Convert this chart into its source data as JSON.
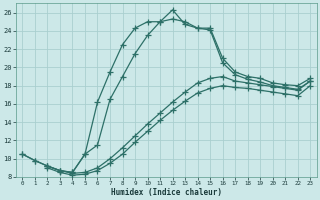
{
  "xlabel": "Humidex (Indice chaleur)",
  "bg_color": "#cce8e8",
  "grid_color": "#aacfcf",
  "line_color": "#2d7068",
  "xlim": [
    -0.5,
    23.5
  ],
  "ylim": [
    8,
    27
  ],
  "xticks": [
    0,
    1,
    2,
    3,
    4,
    5,
    6,
    7,
    8,
    9,
    10,
    11,
    12,
    13,
    14,
    15,
    16,
    17,
    18,
    19,
    20,
    21,
    22,
    23
  ],
  "yticks": [
    8,
    10,
    12,
    14,
    16,
    18,
    20,
    22,
    24,
    26
  ],
  "line1_x": [
    0,
    1,
    2,
    3,
    4,
    5,
    6,
    7,
    8,
    9,
    10,
    11,
    12,
    13,
    14,
    15,
    16,
    17,
    18,
    19,
    20,
    21,
    22,
    23
  ],
  "line1_y": [
    10.5,
    9.8,
    9.2,
    8.7,
    8.5,
    10.5,
    16.2,
    19.5,
    22.5,
    24.3,
    25.0,
    25.0,
    26.3,
    24.7,
    24.3,
    24.3,
    21.0,
    19.5,
    19.0,
    18.8,
    18.3,
    18.1,
    18.0,
    18.8
  ],
  "line2_x": [
    0,
    1,
    2,
    3,
    4,
    5,
    6,
    7,
    8,
    9,
    10,
    11,
    12,
    13,
    14,
    15,
    16,
    17,
    18,
    19,
    20,
    21,
    22,
    23
  ],
  "line2_y": [
    10.5,
    9.8,
    9.2,
    8.7,
    8.5,
    10.5,
    11.5,
    16.5,
    19.0,
    21.5,
    23.5,
    25.0,
    25.3,
    25.0,
    24.3,
    24.1,
    20.5,
    19.2,
    18.7,
    18.4,
    18.0,
    17.8,
    17.6,
    18.5
  ],
  "line3_x": [
    2,
    3,
    4,
    5,
    6,
    7,
    8,
    9,
    10,
    11,
    12,
    13,
    14,
    15,
    16,
    17,
    18,
    19,
    20,
    21,
    22,
    23
  ],
  "line3_y": [
    9.2,
    8.7,
    8.4,
    8.5,
    9.0,
    10.0,
    11.2,
    12.5,
    13.8,
    15.0,
    16.2,
    17.3,
    18.3,
    18.8,
    19.0,
    18.5,
    18.3,
    18.1,
    17.9,
    17.7,
    17.5,
    18.5
  ],
  "line4_x": [
    2,
    3,
    4,
    5,
    6,
    7,
    8,
    9,
    10,
    11,
    12,
    13,
    14,
    15,
    16,
    17,
    18,
    19,
    20,
    21,
    22,
    23
  ],
  "line4_y": [
    9.0,
    8.5,
    8.2,
    8.3,
    8.7,
    9.5,
    10.5,
    11.8,
    13.0,
    14.2,
    15.3,
    16.3,
    17.2,
    17.7,
    18.0,
    17.8,
    17.7,
    17.5,
    17.3,
    17.1,
    16.9,
    18.0
  ]
}
